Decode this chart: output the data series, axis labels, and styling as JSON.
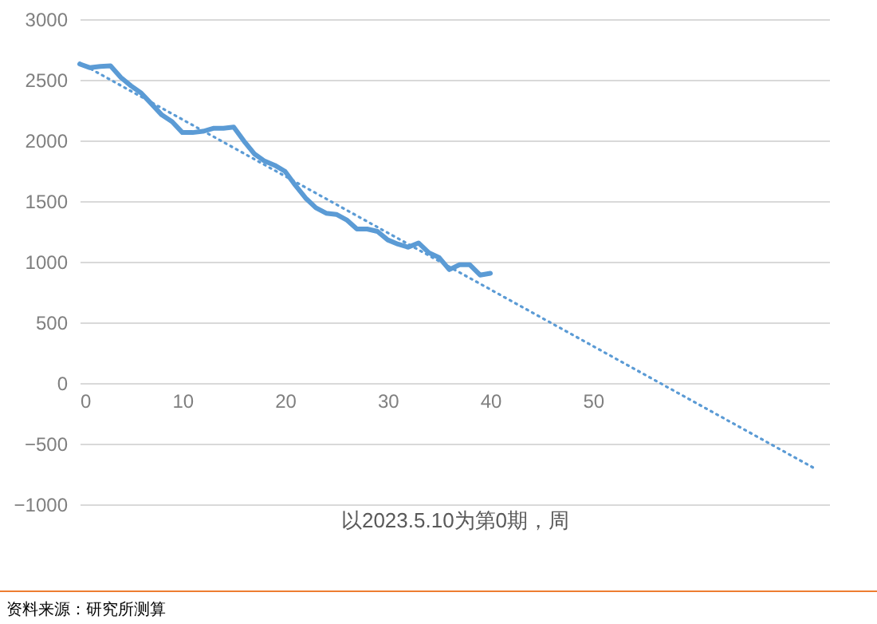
{
  "chart_data": {
    "type": "line",
    "xlabel": "以2023.5.10为第0期，周",
    "xlim": [
      0,
      73
    ],
    "xticks": [
      0,
      10,
      20,
      30,
      40,
      50
    ],
    "ylim": [
      -1000,
      3000
    ],
    "yticks": [
      -1000,
      -500,
      0,
      500,
      1000,
      1500,
      2000,
      2500,
      3000
    ],
    "grid": "y",
    "series": [
      {
        "color": "#5b9bd5",
        "line_style": "solid",
        "x": [
          0,
          1,
          2,
          3,
          4,
          5,
          6,
          7,
          8,
          9,
          10,
          11,
          12,
          13,
          14,
          15,
          16,
          17,
          18,
          19,
          20,
          21,
          22,
          23,
          24,
          25,
          26,
          27,
          28,
          29,
          30,
          31,
          32,
          33,
          34,
          35,
          36,
          37,
          38,
          39,
          40
        ],
        "values": [
          2630,
          2600,
          2610,
          2615,
          2520,
          2450,
          2390,
          2300,
          2210,
          2155,
          2065,
          2065,
          2075,
          2100,
          2100,
          2110,
          1995,
          1890,
          1830,
          1795,
          1745,
          1630,
          1525,
          1445,
          1400,
          1390,
          1345,
          1270,
          1270,
          1250,
          1180,
          1145,
          1120,
          1155,
          1075,
          1035,
          935,
          975,
          975,
          890,
          905
        ]
      },
      {
        "type": "line",
        "color": "#5b9bd5",
        "line_style": "dotted",
        "x": [
          0,
          71.5
        ],
        "values": [
          2640,
          -700
        ]
      }
    ],
    "annotations": [
      "资料来源：研究所测算"
    ]
  }
}
